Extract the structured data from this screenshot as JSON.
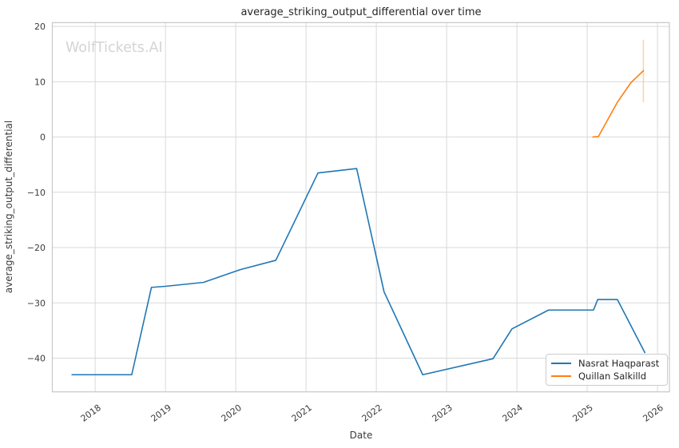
{
  "watermark": "WolfTickets.AI",
  "colors": {
    "series1": "#1f77b4",
    "series2": "#ff7f0e",
    "errorbar": "#ffd0a1",
    "grid": "#d9d9d9",
    "spine": "#c7c7c7",
    "title_text": "#262626",
    "tick_text": "#3b3b3b",
    "watermark": "#d4d4d4",
    "legend_border": "#cccccc"
  },
  "chart_data": {
    "type": "line",
    "title": "average_striking_output_differential over time",
    "xlabel": "Date",
    "ylabel": "average_striking_output_differential",
    "grid": true,
    "legend_position": "lower right",
    "xlim": [
      2017.39,
      2026.17
    ],
    "ylim": [
      -46.1,
      20.7
    ],
    "x_ticks": [
      2018,
      2019,
      2020,
      2021,
      2022,
      2023,
      2024,
      2025,
      2026
    ],
    "x_tick_labels": [
      "2018",
      "2019",
      "2020",
      "2021",
      "2022",
      "2023",
      "2024",
      "2025",
      "2026"
    ],
    "y_ticks": [
      20,
      10,
      0,
      -10,
      -20,
      -30,
      -40
    ],
    "y_tick_labels": [
      "20",
      "10",
      "0",
      "−10",
      "−20",
      "−30",
      "−40"
    ],
    "series": [
      {
        "name": "Nasrat Haqparast",
        "color": "#1f77b4",
        "x": [
          2017.67,
          2018.52,
          2018.8,
          2019.0,
          2019.54,
          2020.06,
          2020.57,
          2021.17,
          2021.72,
          2022.11,
          2022.66,
          2023.66,
          2023.93,
          2024.45,
          2025.09,
          2025.15,
          2025.43,
          2025.82
        ],
        "y": [
          -43.0,
          -43.0,
          -27.2,
          -27.0,
          -26.3,
          -24.0,
          -22.3,
          -6.5,
          -5.7,
          -28.0,
          -43.0,
          -40.1,
          -34.7,
          -31.3,
          -31.3,
          -29.4,
          -29.4,
          -39.0
        ]
      },
      {
        "name": "Quillan Salkilld",
        "color": "#ff7f0e",
        "x": [
          2025.08,
          2025.16,
          2025.43,
          2025.62,
          2025.8
        ],
        "y": [
          0.0,
          0.1,
          6.3,
          9.8,
          12.0
        ],
        "error_bar": {
          "x": 2025.8,
          "low": 6.3,
          "high": 17.6
        }
      }
    ]
  },
  "legend": {
    "items": [
      {
        "label": "Nasrat Haqparast",
        "color": "#1f77b4"
      },
      {
        "label": "Quillan Salkilld",
        "color": "#ff7f0e"
      }
    ]
  }
}
